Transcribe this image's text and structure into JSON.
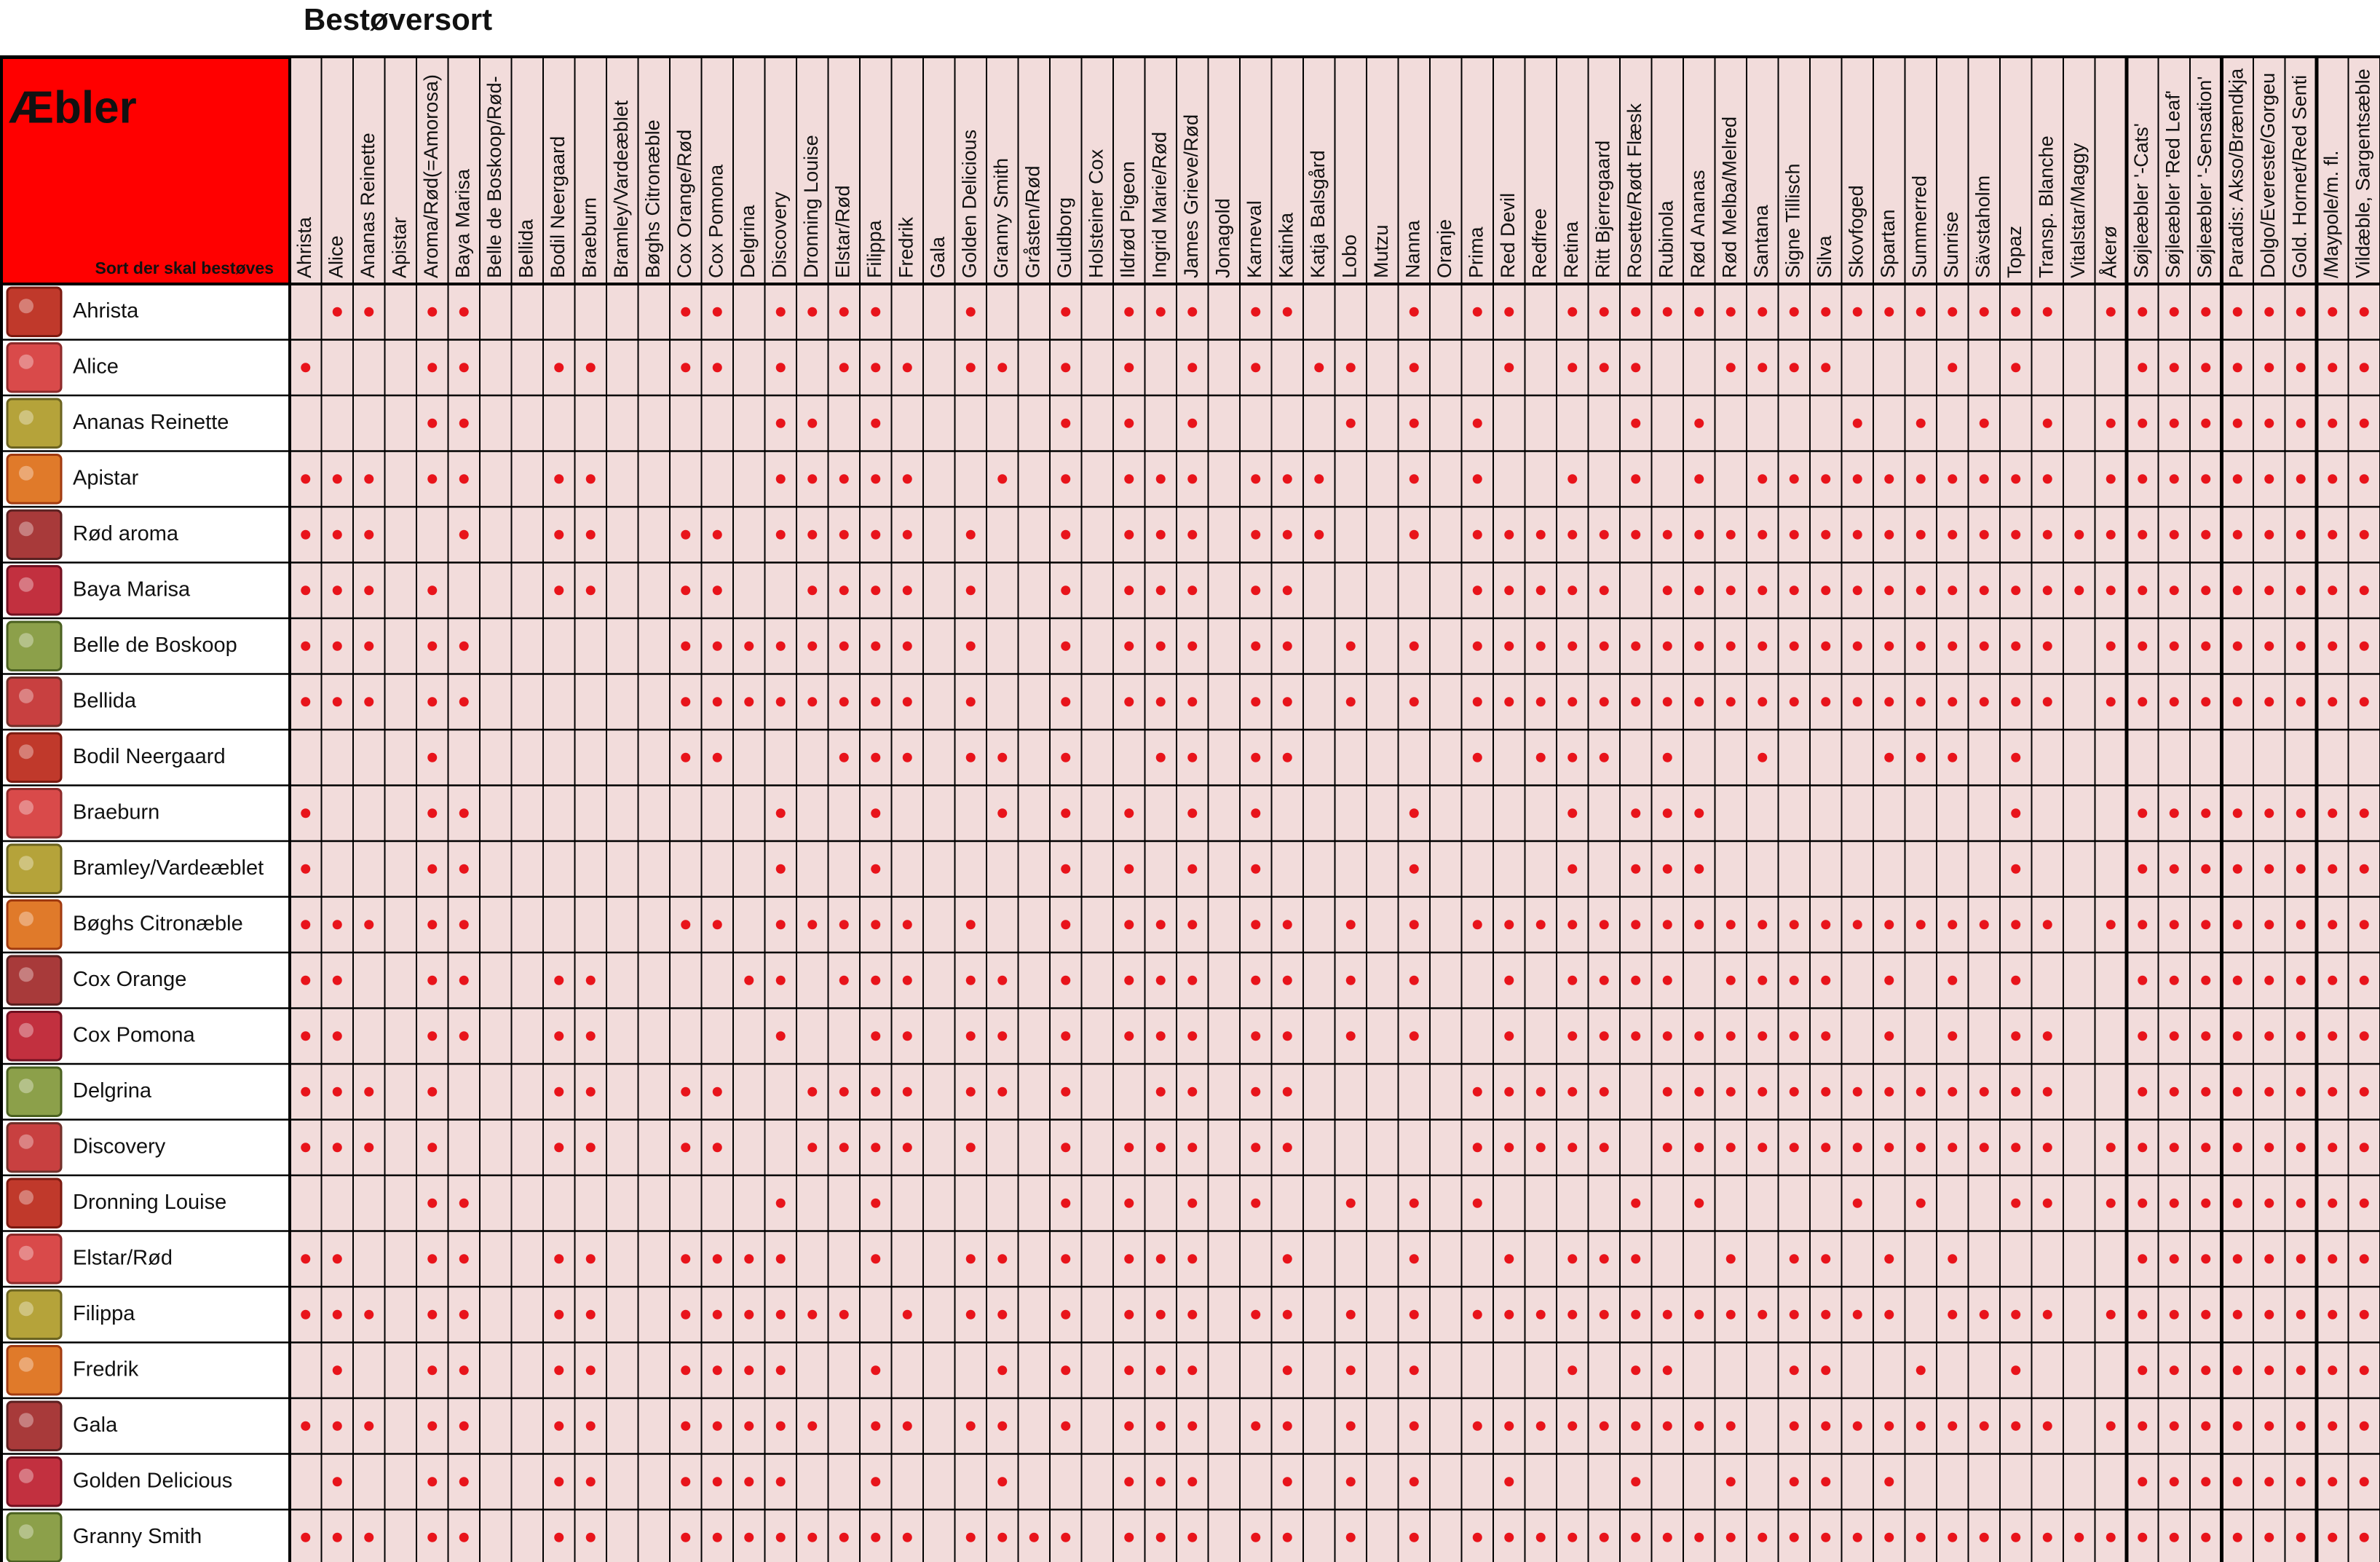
{
  "title": "Bestøversort",
  "corner": {
    "title": "Æbler",
    "subtitle": "Sort der skal bestøves"
  },
  "columns": [
    "Ahrista",
    "Alice",
    "Ananas Reinette",
    "Apistar",
    "Aroma/Rød(=Amorosa)",
    "Baya Marisa",
    "Belle de Boskoop/Rød-",
    "Bellida",
    "Bodil Neergaard",
    "Braeburn",
    "Bramley/Vardeæblet",
    "Bøghs Citronæble",
    "Cox Orange/Rød",
    "Cox Pomona",
    "Delgrina",
    "Discovery",
    "Dronning Louise",
    "Elstar/Rød",
    "Filippa",
    "Fredrik",
    "Gala",
    "Golden Delicious",
    "Granny Smith",
    "Gråsten/Rød",
    "Guldborg",
    "Holsteiner Cox",
    "Ildrød Pigeon",
    "Ingrid Marie/Rød",
    "James Grieve/Rød",
    "Jonagold",
    "Karneval",
    "Katinka",
    "Katja Balsgård",
    "Lobo",
    "Mutzu",
    "Nanna",
    "Oranje",
    "Prima",
    "Red Devil",
    "Redfree",
    "Retina",
    "Ritt Bjerregaard",
    "Rosette/Rødt Flæsk",
    "Rubinola",
    "Rød Ananas",
    "Rød Melba/Melred",
    "Santana",
    "Signe Tillisch",
    "Silva",
    "Skovfoged",
    "Spartan",
    "Summerred",
    "Sunrise",
    "Sävstaholm",
    "Topaz",
    "Transp. Blanche",
    "Vitalstar/Maggy",
    "Åkerø",
    "Søjleæbler '-Cats'",
    "Søjleæbler 'Red Leaf'",
    "Søjleæbler '-Sensation'",
    "Paradis: Akso/Brændkja",
    "Dolgo/Evereste/Gorgeu",
    "Gold. Hornet/Red Senti",
    "/Maypole/m. fl.",
    "Vildæble, Sargentsæble"
  ],
  "rows": [
    {
      "name": "Ahrista",
      "marks": [
        0,
        1,
        1,
        0,
        1,
        1,
        0,
        0,
        0,
        0,
        0,
        0,
        1,
        1,
        0,
        1,
        1,
        1,
        1,
        0,
        0,
        1,
        0,
        0,
        1,
        0,
        1,
        1,
        1,
        0,
        1,
        1,
        0,
        0,
        0,
        1,
        0,
        1,
        1,
        0,
        1,
        1,
        1,
        1,
        1,
        1,
        1,
        1,
        1,
        1,
        1,
        1,
        1,
        1,
        1,
        1,
        0,
        1,
        1,
        1,
        1,
        1,
        1,
        1,
        1,
        1
      ]
    },
    {
      "name": "Alice",
      "marks": [
        1,
        0,
        0,
        0,
        1,
        1,
        0,
        0,
        1,
        1,
        0,
        0,
        1,
        1,
        0,
        1,
        0,
        1,
        1,
        1,
        0,
        1,
        1,
        0,
        1,
        0,
        1,
        0,
        1,
        0,
        1,
        0,
        1,
        1,
        0,
        1,
        0,
        0,
        1,
        0,
        1,
        1,
        1,
        0,
        0,
        1,
        1,
        1,
        1,
        0,
        0,
        0,
        1,
        0,
        1,
        0,
        0,
        0,
        1,
        1,
        1,
        1,
        1,
        1,
        1,
        1
      ]
    },
    {
      "name": "Ananas Reinette",
      "marks": [
        0,
        0,
        0,
        0,
        1,
        1,
        0,
        0,
        0,
        0,
        0,
        0,
        0,
        0,
        0,
        1,
        1,
        0,
        1,
        0,
        0,
        0,
        0,
        0,
        1,
        0,
        1,
        0,
        1,
        0,
        0,
        0,
        0,
        1,
        0,
        1,
        0,
        1,
        0,
        0,
        0,
        0,
        1,
        0,
        1,
        0,
        0,
        0,
        0,
        1,
        0,
        1,
        0,
        1,
        0,
        1,
        0,
        1,
        1,
        1,
        1,
        1,
        1,
        1,
        1,
        1
      ]
    },
    {
      "name": "Apistar",
      "marks": [
        1,
        1,
        1,
        0,
        1,
        1,
        0,
        0,
        1,
        1,
        0,
        0,
        0,
        0,
        0,
        1,
        1,
        1,
        1,
        1,
        0,
        0,
        1,
        0,
        1,
        0,
        1,
        1,
        1,
        0,
        1,
        1,
        1,
        0,
        0,
        1,
        0,
        1,
        0,
        0,
        1,
        0,
        1,
        0,
        1,
        0,
        1,
        1,
        1,
        1,
        1,
        1,
        1,
        1,
        1,
        1,
        0,
        1,
        1,
        1,
        1,
        1,
        1,
        1,
        1,
        1
      ]
    },
    {
      "name": "Rød aroma",
      "marks": [
        1,
        1,
        1,
        0,
        0,
        1,
        0,
        0,
        1,
        1,
        0,
        0,
        1,
        1,
        0,
        1,
        1,
        1,
        1,
        1,
        0,
        1,
        0,
        0,
        1,
        0,
        1,
        1,
        1,
        0,
        1,
        1,
        1,
        0,
        0,
        1,
        0,
        1,
        1,
        1,
        1,
        1,
        1,
        1,
        1,
        1,
        1,
        1,
        1,
        1,
        1,
        1,
        1,
        1,
        1,
        1,
        1,
        1,
        1,
        1,
        1,
        1,
        1,
        1,
        1,
        1
      ]
    },
    {
      "name": "Baya Marisa",
      "marks": [
        1,
        1,
        1,
        0,
        1,
        0,
        0,
        0,
        1,
        1,
        0,
        0,
        1,
        1,
        0,
        0,
        1,
        1,
        1,
        1,
        0,
        1,
        0,
        0,
        1,
        0,
        1,
        1,
        1,
        0,
        1,
        1,
        0,
        0,
        0,
        0,
        0,
        1,
        1,
        1,
        1,
        1,
        0,
        1,
        1,
        1,
        1,
        1,
        1,
        1,
        1,
        1,
        1,
        1,
        1,
        1,
        1,
        1,
        1,
        1,
        1,
        1,
        1,
        1,
        1,
        1
      ]
    },
    {
      "name": "Belle de Boskoop",
      "marks": [
        1,
        1,
        1,
        0,
        1,
        1,
        0,
        0,
        0,
        0,
        0,
        0,
        1,
        1,
        1,
        1,
        1,
        1,
        1,
        1,
        0,
        1,
        0,
        0,
        1,
        0,
        1,
        1,
        1,
        0,
        1,
        1,
        0,
        1,
        0,
        1,
        0,
        1,
        1,
        1,
        1,
        1,
        1,
        1,
        1,
        1,
        1,
        1,
        1,
        1,
        1,
        1,
        1,
        1,
        1,
        1,
        0,
        1,
        1,
        1,
        1,
        1,
        1,
        1,
        1,
        1
      ]
    },
    {
      "name": "Bellida",
      "marks": [
        1,
        1,
        1,
        0,
        1,
        1,
        0,
        0,
        0,
        0,
        0,
        0,
        1,
        1,
        1,
        1,
        1,
        1,
        1,
        1,
        0,
        1,
        0,
        0,
        1,
        0,
        1,
        1,
        1,
        0,
        1,
        1,
        0,
        1,
        0,
        1,
        0,
        1,
        1,
        1,
        1,
        1,
        1,
        1,
        1,
        1,
        1,
        1,
        1,
        1,
        1,
        1,
        1,
        1,
        1,
        1,
        0,
        1,
        1,
        1,
        1,
        1,
        1,
        1,
        1,
        1
      ]
    },
    {
      "name": "Bodil Neergaard",
      "marks": [
        0,
        0,
        0,
        0,
        1,
        0,
        0,
        0,
        0,
        0,
        0,
        0,
        1,
        1,
        0,
        0,
        0,
        1,
        1,
        1,
        0,
        1,
        1,
        0,
        1,
        0,
        0,
        1,
        1,
        0,
        1,
        1,
        0,
        0,
        0,
        0,
        0,
        1,
        0,
        1,
        1,
        1,
        0,
        1,
        0,
        0,
        1,
        0,
        0,
        0,
        1,
        1,
        1,
        0,
        1,
        0,
        0,
        0,
        0,
        0,
        0,
        0,
        0,
        0,
        0,
        0
      ]
    },
    {
      "name": "Braeburn",
      "marks": [
        1,
        0,
        0,
        0,
        1,
        1,
        0,
        0,
        0,
        0,
        0,
        0,
        0,
        0,
        0,
        1,
        0,
        0,
        1,
        0,
        0,
        0,
        1,
        0,
        1,
        0,
        1,
        0,
        1,
        0,
        1,
        0,
        0,
        0,
        0,
        1,
        0,
        0,
        0,
        0,
        1,
        0,
        1,
        1,
        1,
        0,
        0,
        0,
        0,
        0,
        0,
        0,
        0,
        0,
        1,
        0,
        0,
        0,
        1,
        1,
        1,
        1,
        1,
        1,
        1,
        1
      ]
    },
    {
      "name": "Bramley/Vardeæblet",
      "marks": [
        1,
        0,
        0,
        0,
        1,
        1,
        0,
        0,
        0,
        0,
        0,
        0,
        0,
        0,
        0,
        1,
        0,
        0,
        1,
        0,
        0,
        0,
        0,
        0,
        1,
        0,
        1,
        0,
        1,
        0,
        1,
        0,
        0,
        0,
        0,
        1,
        0,
        0,
        0,
        0,
        1,
        0,
        1,
        1,
        1,
        0,
        0,
        0,
        0,
        0,
        0,
        0,
        0,
        0,
        1,
        0,
        0,
        0,
        1,
        1,
        1,
        1,
        1,
        1,
        1,
        1
      ]
    },
    {
      "name": "Bøghs Citronæble",
      "marks": [
        1,
        1,
        1,
        0,
        1,
        1,
        0,
        0,
        0,
        0,
        0,
        0,
        1,
        1,
        0,
        1,
        1,
        1,
        1,
        1,
        0,
        1,
        0,
        0,
        1,
        0,
        1,
        1,
        1,
        0,
        1,
        1,
        0,
        1,
        0,
        1,
        0,
        1,
        1,
        1,
        1,
        1,
        1,
        1,
        1,
        1,
        1,
        1,
        1,
        1,
        1,
        1,
        1,
        1,
        1,
        1,
        0,
        1,
        1,
        1,
        1,
        1,
        1,
        1,
        1,
        1
      ]
    },
    {
      "name": "Cox Orange",
      "marks": [
        1,
        1,
        0,
        0,
        1,
        1,
        0,
        0,
        1,
        1,
        0,
        0,
        0,
        0,
        1,
        1,
        0,
        1,
        1,
        1,
        0,
        1,
        1,
        0,
        1,
        0,
        1,
        1,
        1,
        0,
        1,
        1,
        0,
        1,
        0,
        1,
        0,
        0,
        1,
        0,
        1,
        1,
        1,
        1,
        0,
        1,
        1,
        1,
        1,
        0,
        1,
        0,
        1,
        0,
        1,
        0,
        0,
        0,
        1,
        1,
        1,
        1,
        1,
        1,
        1,
        1
      ]
    },
    {
      "name": "Cox Pomona",
      "marks": [
        1,
        1,
        0,
        0,
        1,
        1,
        0,
        0,
        1,
        1,
        0,
        0,
        0,
        0,
        0,
        1,
        0,
        0,
        1,
        1,
        0,
        1,
        1,
        0,
        1,
        0,
        1,
        1,
        1,
        0,
        1,
        1,
        0,
        1,
        0,
        1,
        0,
        0,
        1,
        0,
        1,
        1,
        1,
        1,
        1,
        1,
        1,
        1,
        1,
        0,
        1,
        0,
        1,
        0,
        1,
        1,
        0,
        0,
        1,
        1,
        1,
        1,
        1,
        1,
        1,
        1
      ]
    },
    {
      "name": "Delgrina",
      "marks": [
        1,
        1,
        1,
        0,
        1,
        0,
        0,
        0,
        1,
        1,
        0,
        0,
        1,
        1,
        0,
        0,
        1,
        1,
        1,
        1,
        0,
        1,
        1,
        0,
        1,
        0,
        0,
        1,
        1,
        0,
        1,
        1,
        0,
        0,
        0,
        0,
        0,
        1,
        1,
        1,
        1,
        1,
        0,
        1,
        1,
        1,
        1,
        1,
        1,
        1,
        1,
        1,
        1,
        1,
        1,
        1,
        0,
        0,
        1,
        1,
        1,
        1,
        1,
        1,
        1,
        1
      ]
    },
    {
      "name": "Discovery",
      "marks": [
        1,
        1,
        1,
        0,
        1,
        0,
        0,
        0,
        1,
        1,
        0,
        0,
        1,
        1,
        0,
        0,
        1,
        1,
        1,
        1,
        0,
        1,
        0,
        0,
        1,
        0,
        1,
        1,
        1,
        0,
        1,
        1,
        0,
        0,
        0,
        0,
        0,
        1,
        1,
        1,
        1,
        1,
        0,
        1,
        1,
        1,
        1,
        1,
        1,
        1,
        1,
        1,
        1,
        1,
        1,
        1,
        0,
        1,
        1,
        1,
        1,
        1,
        1,
        1,
        1,
        1
      ]
    },
    {
      "name": "Dronning Louise",
      "marks": [
        0,
        0,
        0,
        0,
        1,
        1,
        0,
        0,
        0,
        0,
        0,
        0,
        0,
        0,
        0,
        1,
        0,
        0,
        1,
        0,
        0,
        0,
        0,
        0,
        1,
        0,
        1,
        0,
        1,
        0,
        1,
        0,
        0,
        1,
        0,
        1,
        0,
        1,
        0,
        0,
        0,
        0,
        1,
        0,
        1,
        0,
        0,
        0,
        0,
        1,
        0,
        1,
        0,
        0,
        1,
        1,
        0,
        1,
        1,
        1,
        1,
        1,
        1,
        1,
        1,
        1
      ]
    },
    {
      "name": "Elstar/Rød",
      "marks": [
        1,
        1,
        0,
        0,
        1,
        1,
        0,
        0,
        1,
        1,
        0,
        0,
        1,
        1,
        1,
        1,
        0,
        0,
        1,
        0,
        0,
        1,
        1,
        0,
        1,
        0,
        1,
        1,
        1,
        0,
        0,
        1,
        0,
        0,
        0,
        1,
        0,
        0,
        1,
        0,
        1,
        1,
        1,
        0,
        0,
        1,
        0,
        1,
        1,
        0,
        1,
        0,
        1,
        0,
        0,
        0,
        0,
        0,
        1,
        1,
        1,
        1,
        1,
        1,
        1,
        1
      ]
    },
    {
      "name": "Filippa",
      "marks": [
        1,
        1,
        1,
        0,
        1,
        1,
        0,
        0,
        1,
        1,
        0,
        0,
        1,
        1,
        1,
        1,
        1,
        1,
        0,
        1,
        0,
        1,
        1,
        0,
        1,
        0,
        1,
        1,
        1,
        0,
        1,
        1,
        0,
        1,
        0,
        1,
        0,
        1,
        1,
        1,
        1,
        1,
        1,
        1,
        1,
        1,
        1,
        1,
        1,
        1,
        1,
        0,
        1,
        1,
        1,
        1,
        0,
        1,
        1,
        1,
        1,
        1,
        1,
        1,
        1,
        1
      ]
    },
    {
      "name": "Fredrik",
      "marks": [
        0,
        1,
        0,
        0,
        1,
        1,
        0,
        0,
        1,
        1,
        0,
        0,
        1,
        1,
        1,
        1,
        0,
        0,
        1,
        0,
        0,
        0,
        1,
        0,
        1,
        0,
        1,
        1,
        1,
        0,
        0,
        1,
        0,
        1,
        0,
        1,
        0,
        0,
        0,
        0,
        1,
        0,
        1,
        1,
        0,
        0,
        0,
        1,
        1,
        0,
        0,
        1,
        0,
        0,
        1,
        0,
        0,
        0,
        1,
        1,
        1,
        1,
        1,
        1,
        1,
        1
      ]
    },
    {
      "name": "Gala",
      "marks": [
        1,
        1,
        1,
        0,
        1,
        1,
        0,
        0,
        1,
        1,
        0,
        0,
        1,
        1,
        1,
        1,
        1,
        0,
        1,
        1,
        0,
        1,
        1,
        0,
        1,
        0,
        1,
        1,
        1,
        0,
        1,
        1,
        0,
        1,
        0,
        1,
        0,
        1,
        1,
        1,
        1,
        1,
        1,
        1,
        1,
        1,
        0,
        1,
        1,
        1,
        1,
        1,
        1,
        1,
        1,
        1,
        0,
        1,
        1,
        1,
        1,
        1,
        1,
        1,
        1,
        1
      ]
    },
    {
      "name": "Golden Delicious",
      "marks": [
        0,
        1,
        0,
        0,
        1,
        1,
        0,
        0,
        1,
        1,
        0,
        0,
        1,
        1,
        1,
        1,
        0,
        0,
        1,
        0,
        0,
        0,
        1,
        0,
        0,
        0,
        1,
        1,
        1,
        0,
        0,
        1,
        0,
        1,
        0,
        1,
        0,
        0,
        1,
        0,
        0,
        0,
        1,
        0,
        0,
        1,
        0,
        1,
        1,
        0,
        1,
        0,
        0,
        0,
        0,
        0,
        0,
        0,
        1,
        1,
        1,
        1,
        1,
        1,
        1,
        1
      ]
    },
    {
      "name": "Granny Smith",
      "marks": [
        1,
        1,
        1,
        0,
        1,
        1,
        0,
        0,
        1,
        1,
        0,
        0,
        1,
        1,
        1,
        1,
        1,
        1,
        1,
        1,
        0,
        1,
        1,
        1,
        1,
        0,
        1,
        1,
        1,
        0,
        1,
        1,
        0,
        1,
        0,
        1,
        0,
        1,
        1,
        1,
        1,
        1,
        1,
        1,
        1,
        1,
        1,
        1,
        1,
        1,
        1,
        1,
        1,
        1,
        1,
        1,
        1,
        1,
        1,
        1,
        1,
        1,
        1,
        1,
        1,
        1
      ]
    }
  ]
}
